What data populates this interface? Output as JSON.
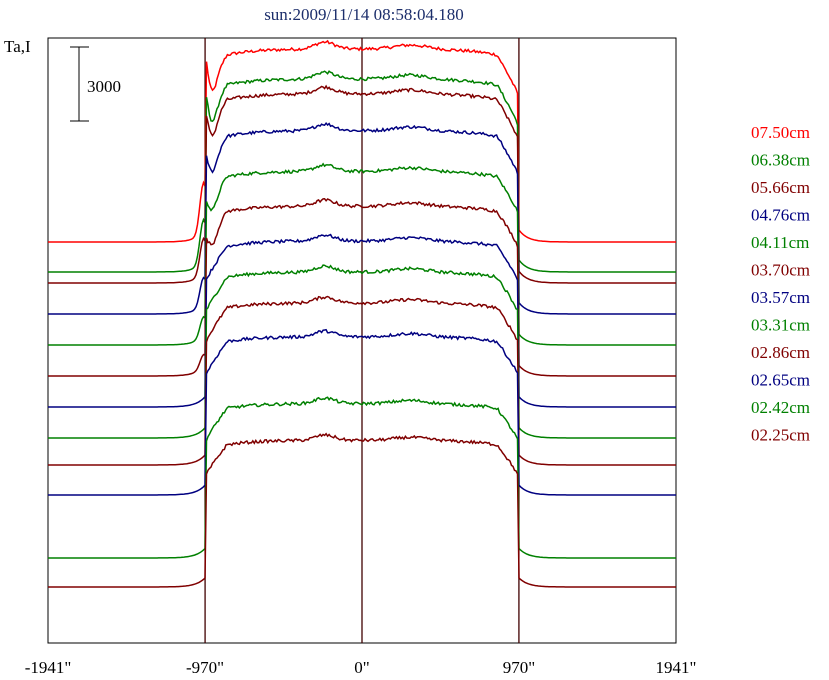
{
  "chart_data": {
    "type": "line",
    "title": "sun:2009/11/14 08:58:04.180",
    "ylabel": "Ta,I",
    "scale_bar_label": "3000",
    "x_ticks": [
      {
        "value": -1941,
        "label": "-1941\""
      },
      {
        "value": -970,
        "label": "-970\""
      },
      {
        "value": 0,
        "label": "0\""
      },
      {
        "value": 970,
        "label": "970\""
      },
      {
        "value": 1941,
        "label": "1941\""
      }
    ],
    "xlim": [
      -1941,
      1941
    ],
    "vertical_lines_at": [
      -970,
      0,
      970
    ],
    "grid": false,
    "legend_position": "right",
    "series": [
      {
        "name": "07.50cm",
        "color": "#ff0000",
        "baseline": 242,
        "scale": 1.0
      },
      {
        "name": "06.38cm",
        "color": "#008000",
        "baseline": 272,
        "scale": 1.0
      },
      {
        "name": "05.66cm",
        "color": "#800000",
        "baseline": 283,
        "scale": 0.98
      },
      {
        "name": "04.76cm",
        "color": "#000080",
        "baseline": 314,
        "scale": 0.95
      },
      {
        "name": "04.11cm",
        "color": "#008000",
        "baseline": 345,
        "scale": 0.9
      },
      {
        "name": "03.70cm",
        "color": "#800000",
        "baseline": 376,
        "scale": 0.88
      },
      {
        "name": "03.57cm",
        "color": "#000080",
        "baseline": 407,
        "scale": 0.86
      },
      {
        "name": "03.31cm",
        "color": "#008000",
        "baseline": 438,
        "scale": 0.86
      },
      {
        "name": "02.86cm",
        "color": "#800000",
        "baseline": 465,
        "scale": 0.84
      },
      {
        "name": "02.65cm",
        "color": "#000080",
        "baseline": 495,
        "scale": 0.82
      },
      {
        "name": "02.42cm",
        "color": "#008000",
        "baseline": 558,
        "scale": 0.8
      },
      {
        "name": "02.25cm",
        "color": "#800000",
        "baseline": 587,
        "scale": 0.76
      }
    ]
  }
}
